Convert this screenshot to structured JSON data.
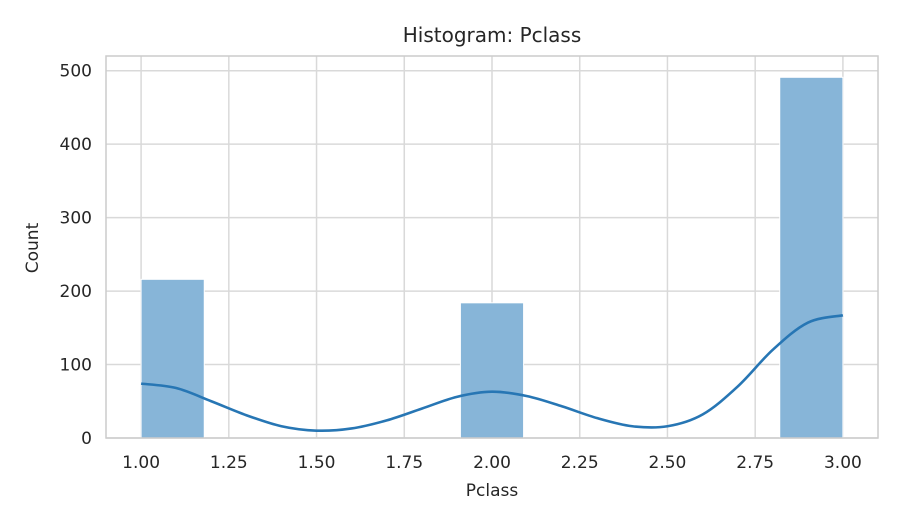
{
  "chart_data": {
    "type": "bar",
    "title": "Histogram: Pclass",
    "xlabel": "Pclass",
    "ylabel": "Count",
    "xlim": [
      0.9,
      3.1
    ],
    "ylim": [
      0,
      520
    ],
    "x_ticks": [
      1.0,
      1.25,
      1.5,
      1.75,
      2.0,
      2.25,
      2.5,
      2.75,
      3.0
    ],
    "x_tick_labels": [
      "1.00",
      "1.25",
      "1.50",
      "1.75",
      "2.00",
      "2.25",
      "2.50",
      "2.75",
      "3.00"
    ],
    "y_ticks": [
      0,
      100,
      200,
      300,
      400,
      500
    ],
    "y_tick_labels": [
      "0",
      "100",
      "200",
      "300",
      "400",
      "500"
    ],
    "grid": true,
    "bars": [
      {
        "x0": 1.0,
        "x1": 1.18,
        "value": 216
      },
      {
        "x0": 1.91,
        "x1": 2.09,
        "value": 184
      },
      {
        "x0": 2.82,
        "x1": 3.0,
        "value": 491
      }
    ],
    "kde": {
      "x": [
        1.0,
        1.1,
        1.2,
        1.3,
        1.4,
        1.5,
        1.6,
        1.7,
        1.8,
        1.9,
        2.0,
        2.1,
        2.2,
        2.3,
        2.4,
        2.5,
        2.6,
        2.7,
        2.8,
        2.9,
        3.0
      ],
      "y": [
        74,
        68,
        50,
        31,
        16,
        10,
        13,
        24,
        40,
        56,
        63,
        57,
        43,
        27,
        16,
        16,
        32,
        70,
        120,
        157,
        167
      ]
    },
    "colors": {
      "bar_fill": "#87b5d8",
      "kde_line": "#2776b4",
      "grid": "#d9d9d9",
      "spine": "#cccccc"
    }
  }
}
